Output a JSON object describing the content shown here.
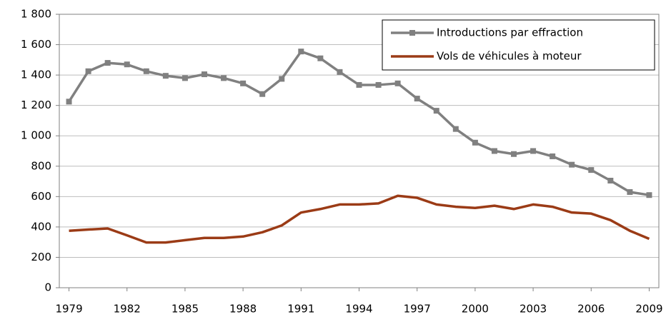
{
  "chart_data": {
    "type": "line",
    "x": [
      1979,
      1980,
      1981,
      1982,
      1983,
      1984,
      1985,
      1986,
      1987,
      1988,
      1989,
      1990,
      1991,
      1992,
      1993,
      1994,
      1995,
      1996,
      1997,
      1998,
      1999,
      2000,
      2001,
      2002,
      2003,
      2004,
      2005,
      2006,
      2007,
      2008,
      2009
    ],
    "xlim": [
      1978.5,
      2009.5
    ],
    "xticks": [
      1979,
      1982,
      1985,
      1988,
      1991,
      1994,
      1997,
      2000,
      2003,
      2006,
      2009
    ],
    "ylim": [
      0,
      1800
    ],
    "yticks": [
      0,
      200,
      400,
      600,
      800,
      {
        "value": 1000,
        "label": "1 000"
      },
      {
        "value": 1200,
        "label": "1 200"
      },
      {
        "value": 1400,
        "label": "1 400"
      },
      {
        "value": 1600,
        "label": "1 600"
      },
      {
        "value": 1800,
        "label": "1 800"
      }
    ],
    "grid": true,
    "legend": "upper right",
    "series": [
      {
        "name": "Introductions par effraction",
        "color": "#808080",
        "marker": "square",
        "values": [
          1225,
          1425,
          1480,
          1470,
          1425,
          1395,
          1380,
          1405,
          1380,
          1345,
          1275,
          1375,
          1555,
          1510,
          1420,
          1335,
          1335,
          1345,
          1245,
          1165,
          1045,
          955,
          900,
          880,
          900,
          865,
          810,
          775,
          705,
          630,
          610
        ]
      },
      {
        "name": "Vols de véhicules à moteur",
        "color": "#9b3b16",
        "values": [
          375,
          383,
          390,
          345,
          298,
          298,
          313,
          328,
          328,
          337,
          365,
          410,
          495,
          518,
          548,
          548,
          555,
          605,
          592,
          548,
          533,
          525,
          540,
          518,
          548,
          533,
          495,
          488,
          445,
          375,
          322
        ]
      }
    ]
  }
}
